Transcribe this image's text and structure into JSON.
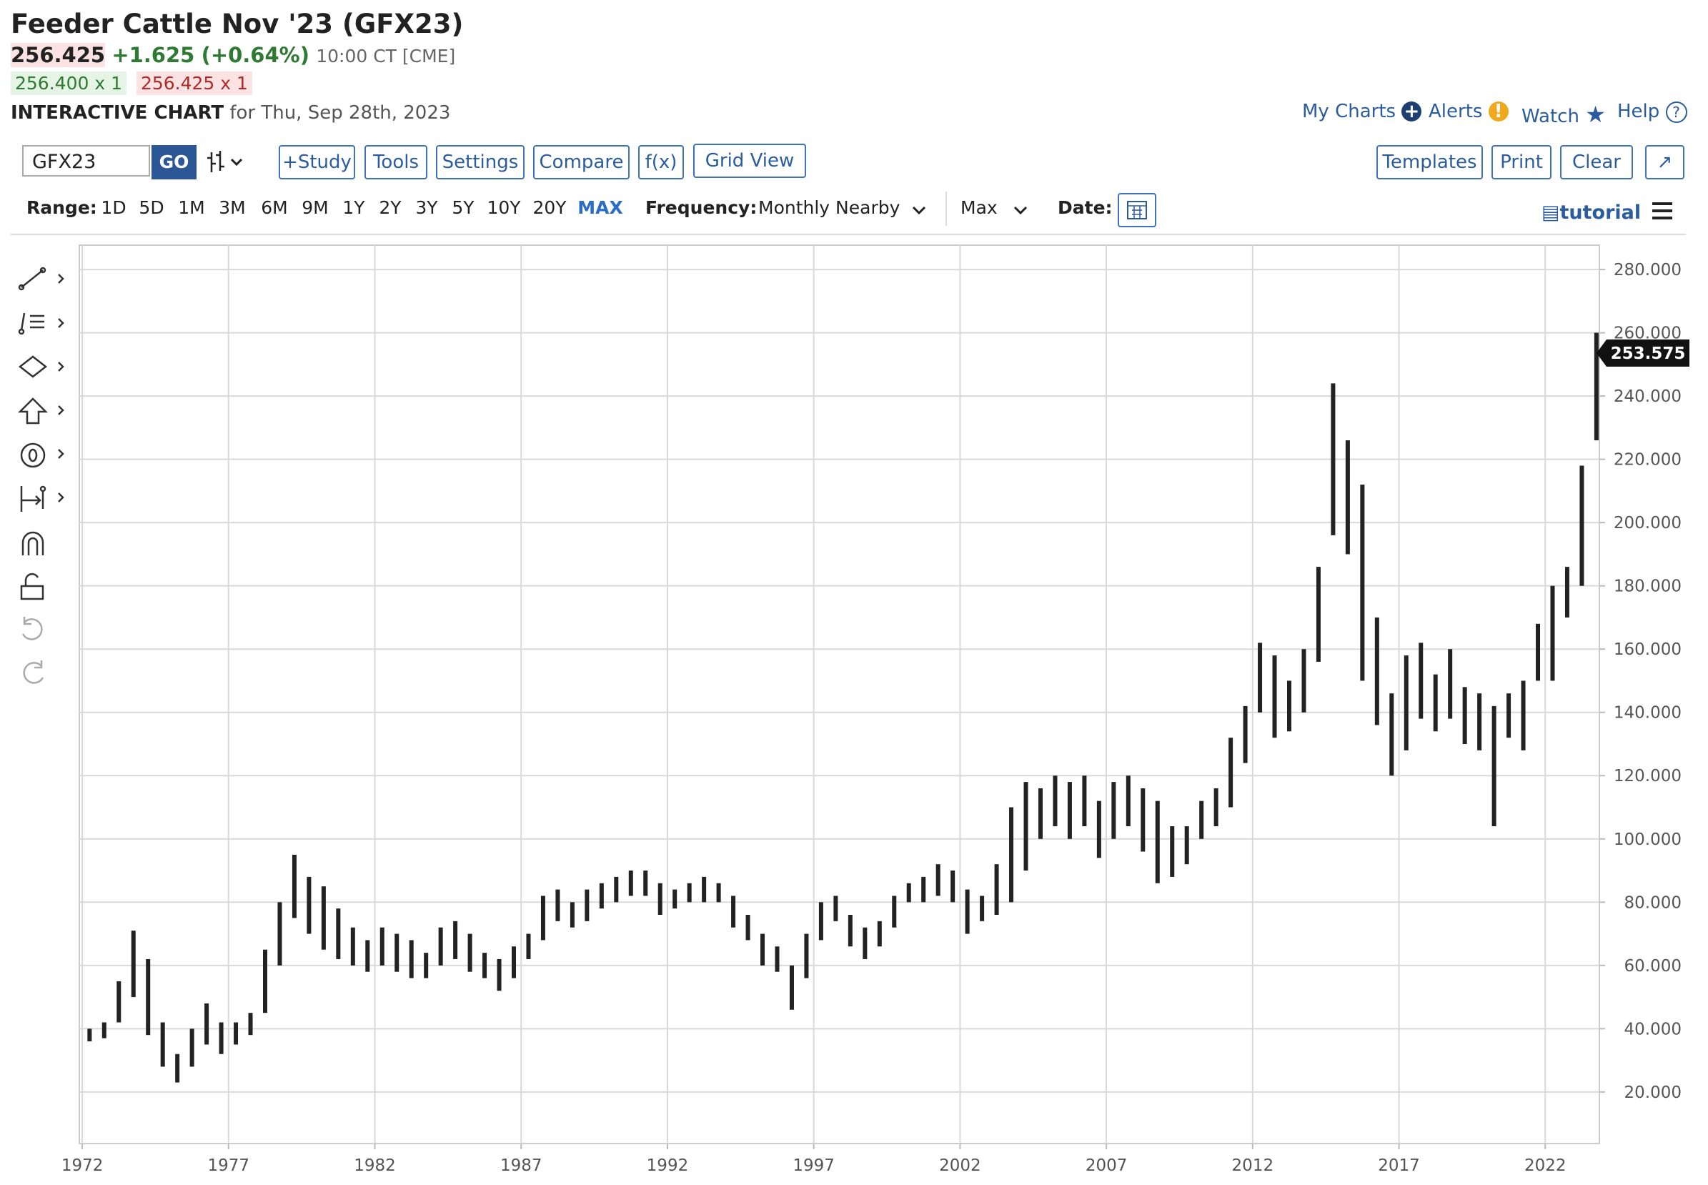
{
  "header": {
    "title": "Feeder Cattle Nov '23 (GFX23)",
    "last": "256.425",
    "change": "+1.625",
    "change_pct": "(+0.64%)",
    "time": "10:00 CT [CME]",
    "bid": "256.400 x 1",
    "ask": "256.425 x 1",
    "chart_label": "INTERACTIVE CHART",
    "chart_date": "for Thu, Sep 28th, 2023"
  },
  "top_links": [
    "My Charts",
    "Alerts",
    "Watch",
    "Help"
  ],
  "symbol": "GFX23",
  "go": "GO",
  "buttons": [
    "+Study",
    "Tools",
    "Settings",
    "Compare",
    "f(x)",
    "Grid View"
  ],
  "right_buttons": [
    "Templates",
    "Print",
    "Clear"
  ],
  "range_label": "Range:",
  "ranges": [
    "1D",
    "5D",
    "1M",
    "3M",
    "6M",
    "9M",
    "1Y",
    "2Y",
    "3Y",
    "5Y",
    "10Y",
    "20Y",
    "MAX"
  ],
  "frequency_label": "Frequency:",
  "frequency": "Monthly Nearby",
  "period": "Max",
  "date_label": "Date:",
  "tutorial": "tutorial",
  "chart_data": {
    "type": "hilo",
    "color": "#222222",
    "x": [
      1972.25,
      1972.75,
      1973.25,
      1973.75,
      1974.25,
      1974.75,
      1975.25,
      1975.75,
      1976.25,
      1976.75,
      1977.25,
      1977.75,
      1978.25,
      1978.75,
      1979.25,
      1979.75,
      1980.25,
      1980.75,
      1981.25,
      1981.75,
      1982.25,
      1982.75,
      1983.25,
      1983.75,
      1984.25,
      1984.75,
      1985.25,
      1985.75,
      1986.25,
      1986.75,
      1987.25,
      1987.75,
      1988.25,
      1988.75,
      1989.25,
      1989.75,
      1990.25,
      1990.75,
      1991.25,
      1991.75,
      1992.25,
      1992.75,
      1993.25,
      1993.75,
      1994.25,
      1994.75,
      1995.25,
      1995.75,
      1996.25,
      1996.75,
      1997.25,
      1997.75,
      1998.25,
      1998.75,
      1999.25,
      1999.75,
      2000.25,
      2000.75,
      2001.25,
      2001.75,
      2002.25,
      2002.75,
      2003.25,
      2003.75,
      2004.25,
      2004.75,
      2005.25,
      2005.75,
      2006.25,
      2006.75,
      2007.25,
      2007.75,
      2008.25,
      2008.75,
      2009.25,
      2009.75,
      2010.25,
      2010.75,
      2011.25,
      2011.75,
      2012.25,
      2012.75,
      2013.25,
      2013.75,
      2014.25,
      2014.75,
      2015.25,
      2015.75,
      2016.25,
      2016.75,
      2017.25,
      2017.75,
      2018.25,
      2018.75,
      2019.25,
      2019.75,
      2020.25,
      2020.75,
      2021.25,
      2021.75,
      2022.25,
      2022.75,
      2023.25,
      2023.75
    ],
    "high": [
      40,
      42,
      55,
      71,
      62,
      42,
      32,
      40,
      48,
      42,
      42,
      45,
      65,
      80,
      95,
      88,
      85,
      78,
      72,
      68,
      72,
      70,
      68,
      64,
      72,
      74,
      70,
      64,
      62,
      66,
      70,
      82,
      84,
      80,
      84,
      86,
      88,
      90,
      90,
      86,
      84,
      86,
      88,
      86,
      82,
      76,
      70,
      66,
      60,
      70,
      80,
      82,
      76,
      72,
      74,
      82,
      86,
      88,
      92,
      90,
      84,
      82,
      92,
      110,
      118,
      116,
      120,
      118,
      120,
      112,
      118,
      120,
      116,
      112,
      104,
      104,
      112,
      116,
      132,
      142,
      162,
      158,
      150,
      160,
      186,
      244,
      226,
      212,
      170,
      146,
      158,
      162,
      152,
      160,
      148,
      146,
      142,
      146,
      150,
      168,
      180,
      186,
      218,
      260
    ],
    "low": [
      36,
      37,
      42,
      50,
      38,
      28,
      23,
      28,
      35,
      32,
      35,
      38,
      45,
      60,
      75,
      70,
      65,
      62,
      60,
      58,
      60,
      58,
      56,
      56,
      60,
      62,
      58,
      56,
      52,
      56,
      62,
      68,
      74,
      72,
      74,
      78,
      80,
      82,
      82,
      76,
      78,
      80,
      80,
      80,
      72,
      68,
      60,
      58,
      46,
      56,
      68,
      74,
      66,
      62,
      66,
      72,
      80,
      80,
      82,
      80,
      70,
      74,
      76,
      80,
      90,
      100,
      104,
      100,
      104,
      94,
      100,
      104,
      96,
      86,
      88,
      92,
      100,
      104,
      110,
      124,
      140,
      132,
      134,
      140,
      156,
      196,
      190,
      150,
      136,
      120,
      128,
      138,
      134,
      138,
      130,
      128,
      104,
      132,
      128,
      150,
      150,
      170,
      180,
      226
    ],
    "last_price": 253.575,
    "xlim": [
      1971.9,
      2023.85
    ],
    "ylim": [
      3.7,
      287.7
    ],
    "xticks": [
      1972,
      1977,
      1982,
      1987,
      1992,
      1997,
      2002,
      2007,
      2012,
      2017,
      2022
    ],
    "yticks": [
      {
        "value": 20,
        "label": "20.000"
      },
      {
        "value": 40,
        "label": "40.000"
      },
      {
        "value": 60,
        "label": "60.000"
      },
      {
        "value": 80,
        "label": "80.000"
      },
      {
        "value": 100,
        "label": "100.000"
      },
      {
        "value": 120,
        "label": "120.000"
      },
      {
        "value": 140,
        "label": "140.000"
      },
      {
        "value": 160,
        "label": "160.000"
      },
      {
        "value": 180,
        "label": "180.000"
      },
      {
        "value": 200,
        "label": "200.000"
      },
      {
        "value": 220,
        "label": "220.000"
      },
      {
        "value": 240,
        "label": "240.000"
      },
      {
        "value": 260,
        "label": "260.000"
      },
      {
        "value": 280,
        "label": "280.000"
      }
    ],
    "grid": true
  }
}
